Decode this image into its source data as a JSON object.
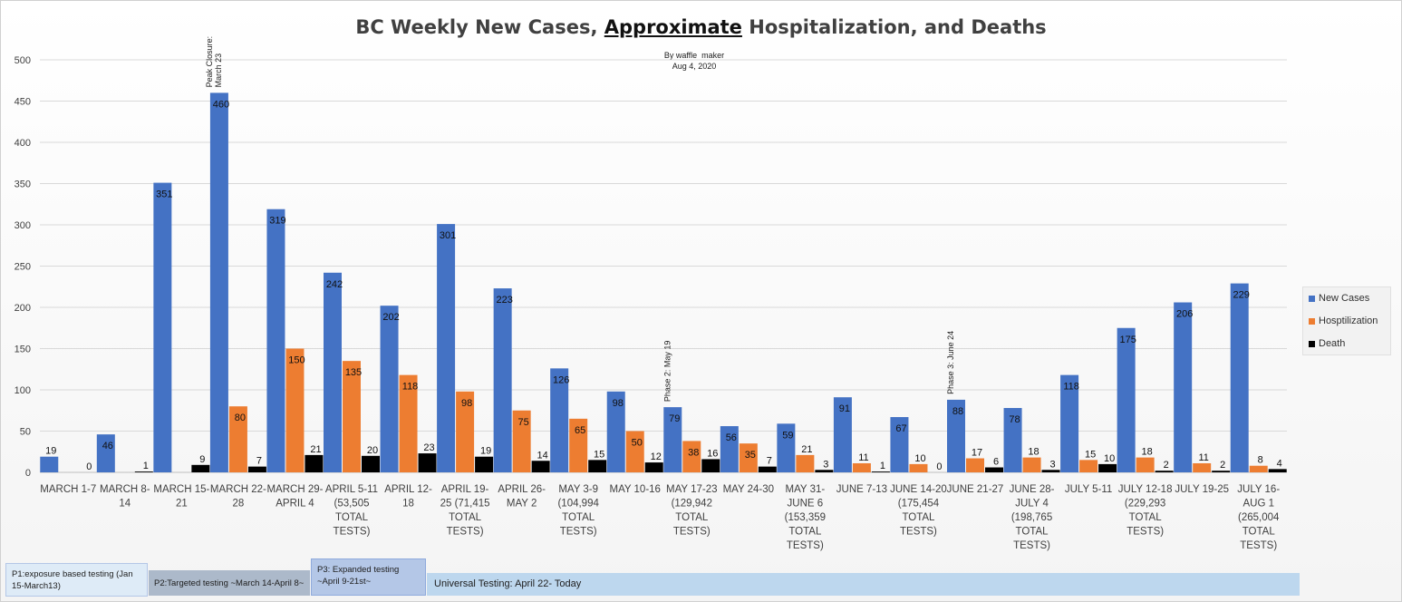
{
  "chart_data": {
    "type": "bar",
    "title_parts": [
      "BC Weekly New Cases, ",
      "Approximate",
      " Hospitalization, and Deaths"
    ],
    "subtitle_lines": [
      "By waffle_maker",
      "Aug 4, 2020"
    ],
    "xlabel": "",
    "ylabel": "",
    "ylim": [
      0,
      500
    ],
    "yticks": [
      "0",
      "50",
      "100",
      "150",
      "200",
      "250",
      "300",
      "350",
      "400",
      "450",
      "500"
    ],
    "grid": true,
    "legend_position": "right",
    "categories": [
      [
        "MARCH 1-7"
      ],
      [
        "MARCH 8-",
        "14"
      ],
      [
        "MARCH 15-",
        "21"
      ],
      [
        "MARCH 22-",
        "28"
      ],
      [
        "MARCH 29-",
        "APRIL 4"
      ],
      [
        "APRIL 5-11",
        "(53,505",
        "TOTAL",
        "TESTS)"
      ],
      [
        "APRIL 12-",
        "18"
      ],
      [
        "APRIL 19-",
        "25 (71,415",
        "TOTAL",
        "TESTS)"
      ],
      [
        "APRIL 26-",
        "MAY 2"
      ],
      [
        "MAY 3-9",
        "(104,994",
        "TOTAL",
        "TESTS)"
      ],
      [
        "MAY 10-16"
      ],
      [
        "MAY 17-23",
        "(129,942",
        "TOTAL",
        "TESTS)"
      ],
      [
        "MAY 24-30"
      ],
      [
        "MAY 31-",
        "JUNE 6",
        "(153,359",
        "TOTAL",
        "TESTS)"
      ],
      [
        "JUNE 7-13"
      ],
      [
        "JUNE 14-20",
        "(175,454",
        "TOTAL",
        "TESTS)"
      ],
      [
        "JUNE 21-27"
      ],
      [
        "JUNE 28-",
        "JULY 4",
        "(198,765",
        "TOTAL",
        "TESTS)"
      ],
      [
        "JULY 5-11"
      ],
      [
        "JULY 12-18",
        "(229,293",
        "TOTAL",
        "TESTS)"
      ],
      [
        "JULY 19-25"
      ],
      [
        "JULY 16-",
        "AUG 1",
        "(265,004",
        "TOTAL",
        "TESTS)"
      ]
    ],
    "series": [
      {
        "name": "New Cases",
        "color": "#4472c4",
        "values": [
          19,
          46,
          351,
          460,
          319,
          242,
          202,
          301,
          223,
          126,
          98,
          79,
          56,
          59,
          91,
          67,
          88,
          78,
          118,
          175,
          206,
          229
        ]
      },
      {
        "name": "Hosptilization",
        "color": "#ed7d31",
        "values": [
          0,
          0,
          0,
          80,
          150,
          135,
          118,
          98,
          75,
          65,
          50,
          38,
          35,
          21,
          11,
          10,
          17,
          18,
          15,
          18,
          11,
          8
        ]
      },
      {
        "name": "Death",
        "color": "#000000",
        "values": [
          0,
          1,
          9,
          7,
          21,
          20,
          23,
          19,
          14,
          15,
          12,
          16,
          7,
          3,
          1,
          0,
          6,
          3,
          10,
          2,
          2,
          4
        ]
      }
    ],
    "data_labels": [
      [
        "19",
        "",
        "0"
      ],
      [
        "46",
        "",
        "1"
      ],
      [
        "351",
        "",
        "9"
      ],
      [
        "460",
        "80",
        "7"
      ],
      [
        "319",
        "150",
        "21"
      ],
      [
        "242",
        "135",
        "20"
      ],
      [
        "202",
        "118",
        "23"
      ],
      [
        "301",
        "98",
        "19"
      ],
      [
        "223",
        "75",
        "14"
      ],
      [
        "126",
        "65",
        "15"
      ],
      [
        "98",
        "50",
        "12"
      ],
      [
        "79",
        "38",
        "16"
      ],
      [
        "56",
        "35",
        "7"
      ],
      [
        "59",
        "21",
        "3"
      ],
      [
        "91",
        "11",
        "1"
      ],
      [
        "67",
        "10",
        "0"
      ],
      [
        "88",
        "17",
        "6"
      ],
      [
        "78",
        "18",
        "3"
      ],
      [
        "118",
        "15",
        "10"
      ],
      [
        "175",
        "18",
        "2"
      ],
      [
        "206",
        "11",
        "2"
      ],
      [
        "229",
        "8",
        "4"
      ]
    ],
    "annotations": [
      {
        "category_index": 3,
        "lines": [
          "Peak Closure:",
          "March 23"
        ]
      },
      {
        "category_index": 11,
        "lines": [
          "Phase 2: May 19"
        ]
      },
      {
        "category_index": 16,
        "lines": [
          "Phase 3: June 24"
        ]
      }
    ]
  },
  "phases": [
    {
      "lines": [
        "P1:exposure based testing (Jan",
        "15-March13)"
      ],
      "color": "#deebf7"
    },
    {
      "lines": [
        "P2:Targeted testing ~March 14-April 8~"
      ],
      "color": "#acb9ca"
    },
    {
      "lines": [
        "P3: Expanded testing",
        "~April 9-21st~"
      ],
      "color": "#b4c7e7"
    },
    {
      "lines": [
        "Universal Testing: April 22- Today"
      ],
      "color": "#bdd7ee"
    }
  ]
}
